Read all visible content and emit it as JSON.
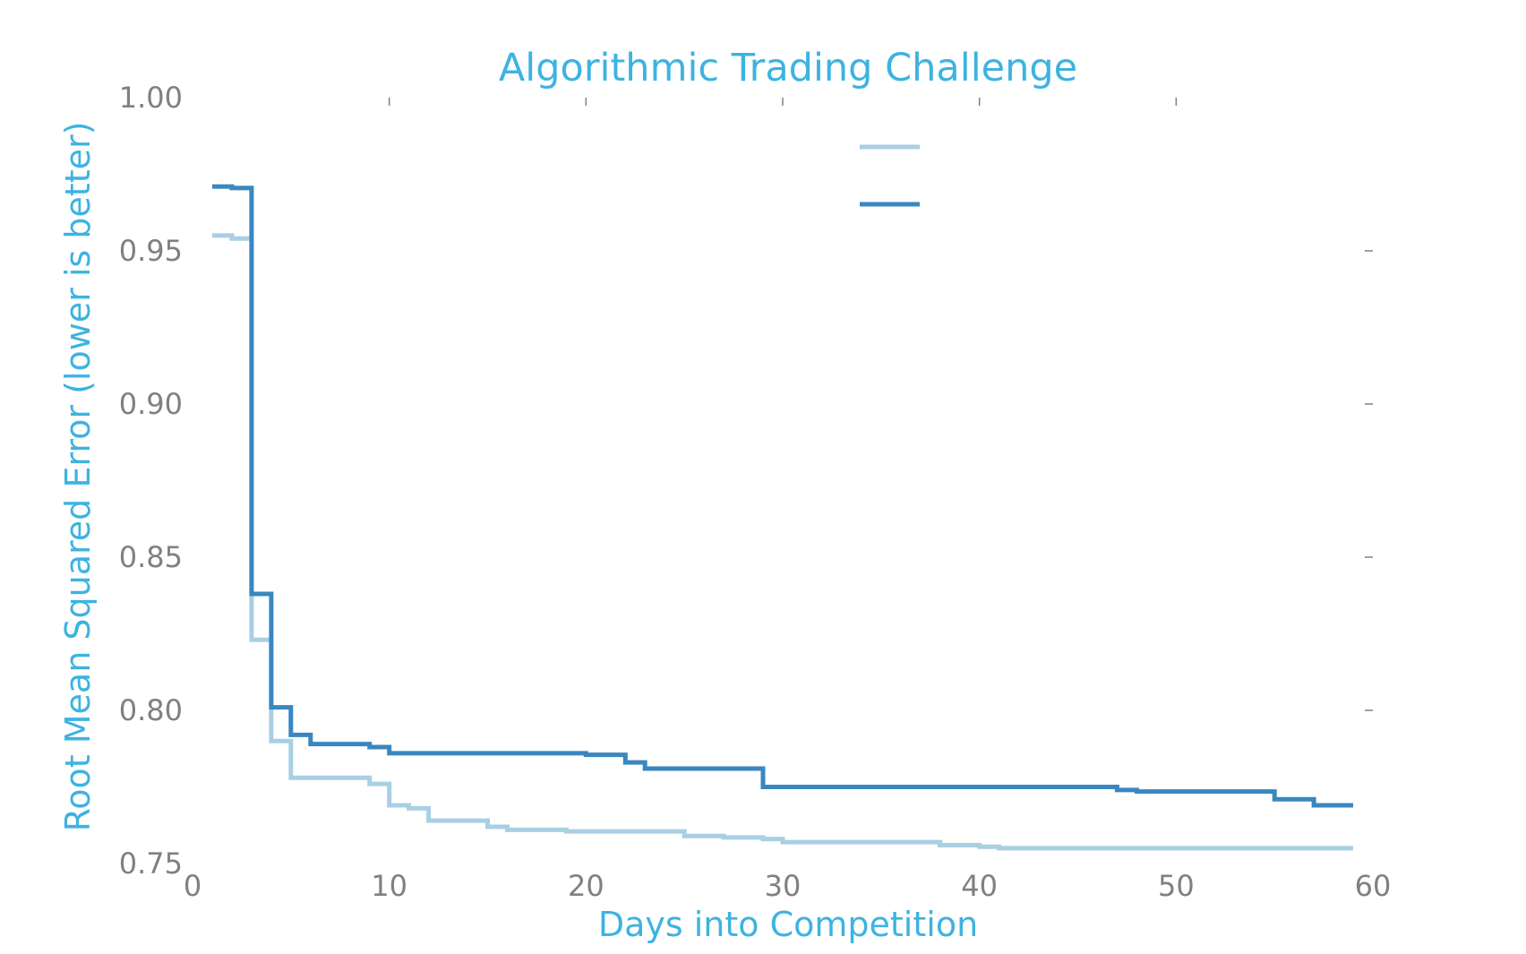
{
  "chart_data": {
    "type": "line",
    "step": true,
    "title": "Algorithmic Trading Challenge",
    "xlabel": "Days into Competition",
    "ylabel": "Root Mean Squared Error (lower is better)",
    "xlim": [
      0,
      60
    ],
    "ylim": [
      0.75,
      1.0
    ],
    "x_ticks": [
      0,
      10,
      20,
      30,
      40,
      50,
      60
    ],
    "y_ticks": [
      0.75,
      0.8,
      0.85,
      0.9,
      0.95,
      1.0
    ],
    "x_tick_labels": [
      "0",
      "10",
      "20",
      "30",
      "40",
      "50",
      "60"
    ],
    "y_tick_labels": [
      "0.75",
      "0.80",
      "0.85",
      "0.90",
      "0.95",
      "1.00"
    ],
    "grid": false,
    "legend": "top-right",
    "colors": {
      "title": "#3db3e0",
      "axis_label": "#3db3e0",
      "tick_label": "#808080",
      "tick_mark": "#808080"
    },
    "series": [
      {
        "color": "#a9cfe3",
        "x": [
          1,
          2,
          3,
          4,
          5,
          9,
          10,
          11,
          12,
          15,
          16,
          19,
          25,
          27,
          29,
          30,
          38,
          40,
          41,
          59
        ],
        "y": [
          0.955,
          0.954,
          0.823,
          0.79,
          0.778,
          0.776,
          0.769,
          0.768,
          0.764,
          0.762,
          0.761,
          0.7605,
          0.759,
          0.7585,
          0.758,
          0.757,
          0.756,
          0.7555,
          0.755,
          0.755
        ]
      },
      {
        "color": "#3a87c0",
        "x": [
          1,
          2,
          3,
          4,
          5,
          6,
          9,
          10,
          20,
          22,
          23,
          29,
          47,
          48,
          55,
          57,
          59
        ],
        "y": [
          0.971,
          0.9705,
          0.838,
          0.801,
          0.792,
          0.789,
          0.788,
          0.786,
          0.7855,
          0.783,
          0.781,
          0.775,
          0.774,
          0.7735,
          0.771,
          0.769,
          0.769
        ]
      }
    ]
  }
}
